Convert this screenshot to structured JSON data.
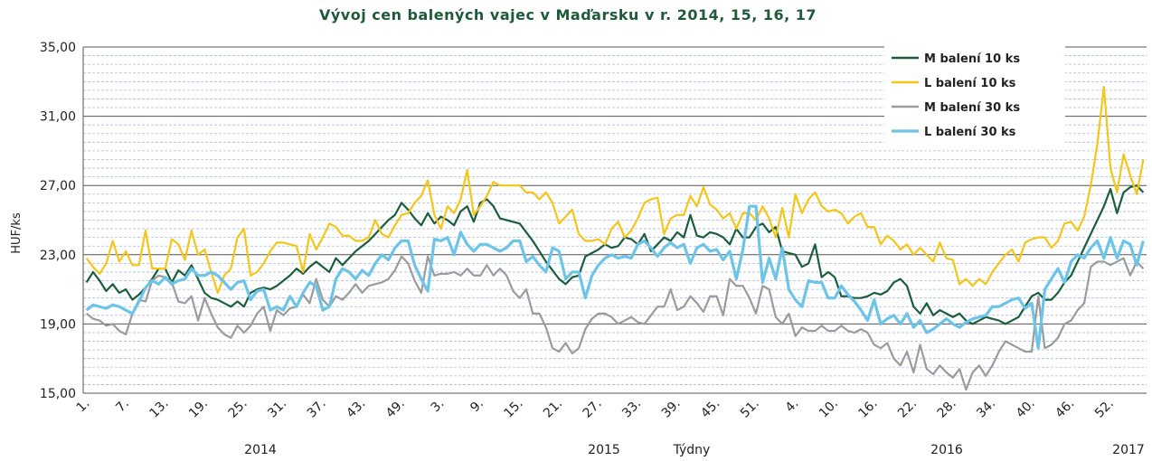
{
  "chart_data": {
    "type": "line",
    "title": "Vývoj cen balených vajec v Maďarsku  v r. 2014,  15, 16, 17",
    "y_label": "HUF/ks",
    "x_label": "Týdny",
    "year_labels": [
      "2014",
      "2015",
      "2016",
      "2017"
    ],
    "legend": "upper right",
    "grid": true,
    "ylim": [
      15,
      35
    ],
    "yticks": [
      {
        "value": 15,
        "label": "15,00"
      },
      {
        "value": 19,
        "label": "19,00"
      },
      {
        "value": 23,
        "label": "23,00"
      },
      {
        "value": 27,
        "label": "27,00"
      },
      {
        "value": 31,
        "label": "31,00"
      },
      {
        "value": 35,
        "label": "35,00"
      }
    ],
    "categories": [
      "1.",
      null,
      null,
      null,
      null,
      null,
      "7.",
      null,
      null,
      null,
      null,
      null,
      "13.",
      null,
      null,
      null,
      null,
      null,
      "19.",
      null,
      null,
      null,
      null,
      null,
      "25.",
      null,
      null,
      null,
      null,
      null,
      "31.",
      null,
      null,
      null,
      null,
      null,
      "37.",
      null,
      null,
      null,
      null,
      null,
      "43.",
      null,
      null,
      null,
      null,
      null,
      "49.",
      null,
      null,
      null,
      null,
      null,
      "3.",
      null,
      null,
      null,
      null,
      null,
      "9.",
      null,
      null,
      null,
      null,
      null,
      "15.",
      null,
      null,
      null,
      null,
      null,
      "21.",
      null,
      null,
      null,
      null,
      null,
      "27.",
      null,
      null,
      null,
      null,
      null,
      "33.",
      null,
      null,
      null,
      null,
      null,
      "39.",
      null,
      null,
      null,
      null,
      null,
      "45.",
      null,
      null,
      null,
      null,
      null,
      "51.",
      null,
      null,
      null,
      null,
      null,
      "4.",
      null,
      null,
      null,
      null,
      null,
      "10.",
      null,
      null,
      null,
      null,
      null,
      "16.",
      null,
      null,
      null,
      null,
      null,
      "22.",
      null,
      null,
      null,
      null,
      null,
      "28.",
      null,
      null,
      null,
      null,
      null,
      "34.",
      null,
      null,
      null,
      null,
      null,
      "40.",
      null,
      null,
      null,
      null,
      null,
      "46.",
      null,
      null,
      null,
      null,
      null,
      "52.",
      null,
      null,
      null,
      null,
      null
    ],
    "series": [
      {
        "name": "M balení 10 ks",
        "color": "#1b5e3b",
        "values": [
          21.4,
          22.0,
          21.5,
          20.9,
          21.3,
          20.8,
          21.0,
          20.4,
          20.7,
          21.1,
          21.6,
          22.2,
          22.2,
          21.4,
          22.1,
          21.8,
          22.4,
          21.6,
          20.8,
          20.5,
          20.4,
          20.2,
          20.0,
          20.3,
          20.0,
          20.8,
          21.0,
          21.1,
          21.0,
          21.2,
          21.5,
          21.8,
          22.2,
          21.9,
          22.3,
          22.6,
          22.3,
          22.0,
          22.8,
          22.4,
          22.8,
          23.2,
          23.5,
          23.8,
          24.2,
          24.6,
          25.0,
          25.3,
          26.0,
          25.6,
          25.1,
          24.7,
          25.4,
          24.8,
          25.2,
          25.0,
          24.7,
          25.5,
          25.8,
          24.9,
          26.0,
          26.2,
          25.8,
          25.1,
          25.0,
          24.9,
          24.8,
          24.3,
          23.8,
          23.2,
          22.6,
          22.1,
          21.6,
          21.3,
          21.7,
          21.8,
          22.9,
          23.1,
          23.3,
          23.6,
          23.4,
          23.5,
          24.0,
          23.9,
          23.6,
          24.2,
          23.2,
          23.6,
          24.0,
          23.8,
          24.3,
          24.0,
          25.3,
          24.1,
          24.0,
          24.3,
          24.2,
          24.0,
          23.6,
          24.5,
          24.0,
          24.0,
          24.6,
          24.8,
          24.3,
          24.6,
          23.2,
          23.1,
          23.0,
          22.3,
          22.5,
          23.6,
          21.7,
          22.0,
          21.7,
          20.6,
          20.6,
          20.5,
          20.5,
          20.6,
          20.8,
          20.7,
          20.9,
          21.4,
          21.6,
          21.2,
          20.0,
          19.6,
          20.2,
          19.5,
          19.8,
          19.6,
          19.4,
          19.6,
          19.2,
          19.0,
          19.2,
          19.4,
          19.3,
          19.2,
          19.0,
          19.2,
          19.4,
          20.0,
          20.6,
          20.8,
          20.4,
          20.4,
          20.8,
          21.4,
          21.8,
          22.6,
          23.4,
          24.2,
          25.0,
          25.8,
          26.8,
          25.4,
          26.6,
          26.9,
          27.0,
          26.6
        ]
      },
      {
        "name": "L balení 10 ks",
        "color": "#f5c518",
        "values": [
          22.8,
          22.3,
          21.9,
          22.5,
          23.8,
          22.6,
          23.2,
          22.4,
          22.4,
          24.4,
          22.2,
          22.2,
          22.2,
          23.9,
          23.6,
          22.7,
          24.4,
          23.0,
          23.3,
          22.0,
          20.8,
          21.8,
          22.2,
          24.0,
          24.5,
          21.8,
          22.0,
          22.5,
          23.2,
          23.7,
          23.7,
          23.6,
          23.5,
          22.0,
          24.2,
          23.3,
          24.0,
          24.8,
          24.6,
          24.1,
          24.1,
          23.8,
          23.8,
          24.0,
          25.0,
          24.2,
          24.0,
          24.7,
          25.3,
          25.4,
          26.0,
          26.4,
          27.3,
          25.3,
          24.5,
          25.8,
          25.4,
          26.2,
          27.9,
          25.3,
          25.8,
          26.4,
          27.2,
          27.0,
          27.0,
          27.0,
          27.0,
          26.6,
          26.6,
          26.2,
          26.6,
          26.0,
          24.8,
          25.2,
          25.6,
          24.2,
          23.8,
          23.8,
          23.9,
          23.6,
          24.5,
          24.9,
          24.0,
          24.4,
          25.1,
          26.0,
          26.2,
          26.3,
          24.2,
          25.1,
          25.3,
          25.3,
          26.4,
          25.8,
          26.9,
          25.9,
          25.6,
          25.1,
          25.4,
          24.5,
          25.4,
          25.4,
          25.0,
          25.8,
          25.1,
          24.0,
          25.7,
          24.0,
          26.5,
          25.4,
          26.2,
          26.6,
          25.8,
          25.5,
          25.6,
          25.4,
          24.8,
          25.2,
          25.4,
          24.6,
          24.6,
          23.6,
          24.1,
          23.8,
          23.3,
          23.6,
          23.0,
          23.4,
          23.0,
          22.6,
          23.7,
          22.8,
          22.7,
          21.3,
          21.6,
          21.2,
          21.6,
          21.3,
          22.0,
          22.5,
          23.0,
          23.3,
          22.6,
          23.7,
          23.9,
          24.0,
          24.0,
          23.4,
          23.8,
          24.8,
          24.9,
          24.4,
          25.2,
          27.0,
          29.4,
          32.7,
          28.0,
          26.6,
          28.8,
          27.6,
          26.5,
          28.5
        ]
      },
      {
        "name": "M balení 30 ks",
        "color": "#9b9b9b",
        "values": [
          19.6,
          19.3,
          19.2,
          18.9,
          19.0,
          18.6,
          18.4,
          19.6,
          20.4,
          20.3,
          21.5,
          21.8,
          21.7,
          21.4,
          20.3,
          20.2,
          20.6,
          19.2,
          20.5,
          19.6,
          18.8,
          18.4,
          18.2,
          18.9,
          18.5,
          18.9,
          19.6,
          20.0,
          18.6,
          19.8,
          19.5,
          19.9,
          20.0,
          20.7,
          20.2,
          21.6,
          20.4,
          20.0,
          20.6,
          20.4,
          20.8,
          21.3,
          20.8,
          21.2,
          21.3,
          21.4,
          21.6,
          22.1,
          22.9,
          22.5,
          21.5,
          20.8,
          22.9,
          21.8,
          21.9,
          21.9,
          22.0,
          21.8,
          22.2,
          21.8,
          21.8,
          22.4,
          21.8,
          22.2,
          21.8,
          20.9,
          20.5,
          21.0,
          19.6,
          19.6,
          18.8,
          17.6,
          17.4,
          17.9,
          17.3,
          17.6,
          18.7,
          19.3,
          19.6,
          19.6,
          19.4,
          19.0,
          19.2,
          19.4,
          19.1,
          19.0,
          19.5,
          20.0,
          20.0,
          21.0,
          19.8,
          20.0,
          20.6,
          20.2,
          19.7,
          20.6,
          20.6,
          19.5,
          21.6,
          21.2,
          21.2,
          20.5,
          19.6,
          21.2,
          21.0,
          19.4,
          19.0,
          19.6,
          18.3,
          18.8,
          18.6,
          18.6,
          18.9,
          18.6,
          18.6,
          18.9,
          18.6,
          18.5,
          18.7,
          18.5,
          17.8,
          17.6,
          17.9,
          17.0,
          16.6,
          17.4,
          16.2,
          17.8,
          16.4,
          16.1,
          16.6,
          16.2,
          15.9,
          16.4,
          15.2,
          16.2,
          16.6,
          16.0,
          16.6,
          17.4,
          18.0,
          17.8,
          17.6,
          17.4,
          17.4,
          20.6,
          17.6,
          17.8,
          18.2,
          19.0,
          19.2,
          19.8,
          20.2,
          22.3,
          22.6,
          22.6,
          22.4,
          22.6,
          22.8,
          21.8,
          22.6,
          22.2
        ]
      },
      {
        "name": "L balení 30 ks",
        "color": "#6cc4e8",
        "values": [
          19.8,
          20.1,
          20.0,
          19.9,
          20.1,
          20.0,
          19.8,
          19.6,
          20.3,
          21.1,
          21.5,
          21.3,
          21.7,
          21.3,
          21.5,
          21.6,
          22.2,
          21.8,
          21.8,
          22.0,
          21.8,
          21.4,
          21.0,
          21.4,
          21.5,
          20.4,
          20.9,
          21.0,
          19.8,
          20.0,
          19.8,
          20.6,
          20.0,
          20.8,
          21.4,
          21.2,
          19.8,
          20.0,
          21.6,
          22.2,
          22.0,
          21.6,
          22.1,
          21.8,
          22.5,
          23.0,
          22.7,
          23.4,
          23.8,
          23.8,
          22.4,
          21.6,
          20.9,
          23.9,
          23.8,
          24.0,
          23.0,
          24.3,
          23.6,
          23.2,
          23.6,
          23.6,
          23.4,
          23.2,
          23.4,
          23.8,
          23.8,
          22.6,
          22.9,
          22.4,
          22.0,
          23.4,
          23.2,
          21.6,
          22.0,
          22.0,
          20.5,
          21.8,
          22.4,
          22.8,
          23.0,
          22.8,
          22.9,
          22.8,
          23.6,
          23.8,
          23.4,
          22.9,
          23.4,
          23.7,
          23.4,
          23.6,
          22.5,
          23.4,
          23.6,
          23.2,
          23.3,
          22.7,
          23.2,
          21.6,
          23.3,
          25.8,
          25.8,
          21.4,
          22.8,
          21.6,
          23.4,
          21.0,
          20.4,
          20.0,
          21.5,
          21.4,
          21.4,
          20.5,
          20.5,
          21.2,
          20.7,
          20.3,
          19.8,
          19.2,
          20.4,
          19.0,
          19.3,
          19.5,
          19.0,
          19.6,
          18.8,
          19.2,
          18.5,
          18.7,
          19.0,
          19.3,
          19.0,
          18.8,
          19.1,
          19.3,
          19.4,
          19.5,
          20.0,
          20.0,
          20.2,
          20.4,
          20.5,
          19.9,
          20.2,
          17.6,
          21.0,
          21.6,
          22.2,
          21.4,
          22.6,
          23.0,
          22.8,
          23.4,
          23.8,
          22.8,
          24.0,
          22.8,
          23.8,
          23.6,
          22.4,
          23.8
        ]
      }
    ]
  }
}
